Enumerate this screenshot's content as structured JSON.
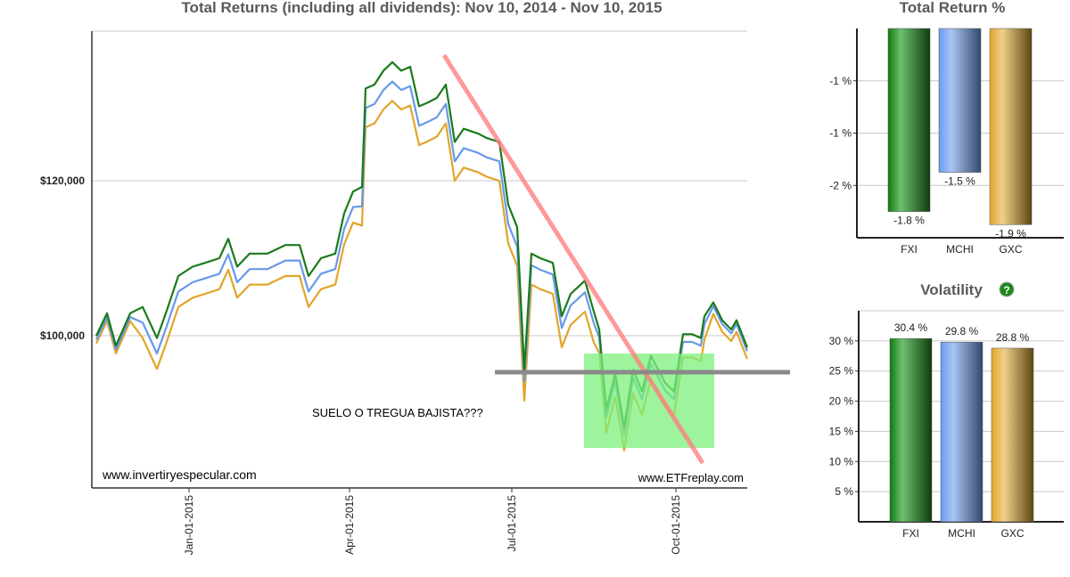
{
  "chart_data": [
    {
      "type": "line",
      "title": "Total Returns (including all dividends): Nov 10, 2014 - Nov 10, 2015",
      "xlabel": "",
      "ylabel": "",
      "x_unit": "days since Nov 10, 2014",
      "xlim": [
        0,
        365
      ],
      "ylim": [
        80350,
        139300
      ],
      "yticks": [
        {
          "value": 120000,
          "label": "$120,000"
        },
        {
          "value": 100000,
          "label": "$100,000"
        }
      ],
      "xticks": [
        {
          "value": 52,
          "label": "Jan-01-2015"
        },
        {
          "value": 142,
          "label": "Apr-01-2015"
        },
        {
          "value": 233,
          "label": "Jul-01-2015"
        },
        {
          "value": 325,
          "label": "Oct-01-2015"
        }
      ],
      "x": [
        0,
        6,
        11,
        19,
        26,
        34,
        39,
        46,
        54,
        61,
        69,
        74,
        79,
        86,
        96,
        106,
        114,
        119,
        126,
        134,
        139,
        144,
        149,
        151,
        156,
        161,
        166,
        171,
        176,
        181,
        186,
        191,
        196,
        201,
        206,
        214,
        219,
        226,
        231,
        236,
        240,
        244,
        249,
        256,
        261,
        266,
        274,
        279,
        282,
        286,
        291,
        296,
        301,
        306,
        311,
        319,
        324,
        329,
        334,
        339,
        341,
        346,
        351,
        356,
        359,
        365
      ],
      "series": [
        {
          "name": "GXC",
          "color": "#e0a52a",
          "values": [
            99000,
            101900,
            97700,
            101900,
            99700,
            95700,
            98900,
            103700,
            104900,
            105400,
            106000,
            108500,
            104900,
            106600,
            106600,
            107700,
            107700,
            103700,
            106000,
            106600,
            111800,
            114600,
            114200,
            126900,
            127400,
            129200,
            130300,
            129200,
            129700,
            124600,
            125100,
            125700,
            127400,
            120000,
            121700,
            121100,
            120500,
            120000,
            111900,
            109000,
            91600,
            106600,
            106000,
            105400,
            98500,
            101400,
            103100,
            99100,
            97800,
            87500,
            92100,
            85200,
            92600,
            89800,
            94400,
            90900,
            89800,
            97200,
            97200,
            96700,
            99500,
            102800,
            100500,
            99300,
            100500,
            97000
          ]
        },
        {
          "name": "MCHI",
          "color": "#6699e8",
          "values": [
            99500,
            102400,
            98200,
            102400,
            101700,
            97700,
            100900,
            105700,
            106900,
            107400,
            108000,
            110500,
            106900,
            108600,
            108600,
            109700,
            109700,
            105700,
            108000,
            108600,
            113800,
            116600,
            116700,
            129400,
            129900,
            131700,
            132800,
            131700,
            132200,
            127100,
            127600,
            128200,
            129900,
            122500,
            124200,
            123600,
            123000,
            122500,
            114400,
            111500,
            94100,
            109100,
            108500,
            107900,
            101000,
            103900,
            105600,
            101600,
            99800,
            89500,
            94100,
            87200,
            94600,
            91800,
            96400,
            92900,
            91800,
            99200,
            99200,
            98700,
            101500,
            103800,
            101500,
            100300,
            101500,
            98000
          ]
        },
        {
          "name": "FXI",
          "color": "#1a7a1a",
          "values": [
            100000,
            102900,
            98700,
            102900,
            103700,
            99700,
            102900,
            107700,
            108900,
            109400,
            110000,
            112500,
            108900,
            110600,
            110600,
            111700,
            111700,
            107700,
            110000,
            110600,
            115800,
            118600,
            119200,
            131900,
            132400,
            134200,
            135300,
            134200,
            134700,
            129600,
            130100,
            130700,
            132400,
            125000,
            126700,
            126100,
            125500,
            125000,
            116900,
            114000,
            95600,
            110600,
            110000,
            109400,
            102500,
            105400,
            107100,
            103100,
            100800,
            90500,
            95100,
            88200,
            95600,
            92800,
            97400,
            93900,
            92800,
            100200,
            100200,
            99700,
            102500,
            104300,
            102000,
            100800,
            102000,
            98500
          ]
        }
      ],
      "annotations": {
        "text": "SUELO O TREGUA BAJISTA???",
        "watermark_left": "www.invertiryespecular.com",
        "watermark_right": "www.ETFreplay.com"
      }
    },
    {
      "type": "bar",
      "title": "Total Return %",
      "categories": [
        "FXI",
        "MCHI",
        "GXC"
      ],
      "values": [
        -1.8,
        -1.5,
        -1.9
      ],
      "labels": [
        "-1.8 %",
        "-1.5 %",
        "-1.9 %"
      ],
      "ylim": [
        -2.0,
        -0.4
      ],
      "yticks": [
        {
          "value": -0.8,
          "label": "-1 %"
        },
        {
          "value": -1.2,
          "label": "-1 %"
        },
        {
          "value": -1.6,
          "label": "-2 %"
        }
      ]
    },
    {
      "type": "bar",
      "title": "Volatility",
      "help_icon": "?",
      "categories": [
        "FXI",
        "MCHI",
        "GXC"
      ],
      "values": [
        30.4,
        29.8,
        28.8
      ],
      "labels": [
        "30.4 %",
        "29.8 %",
        "28.8 %"
      ],
      "ylim": [
        0,
        35
      ],
      "yticks": [
        {
          "value": 5,
          "label": "5 %"
        },
        {
          "value": 10,
          "label": "10 %"
        },
        {
          "value": 15,
          "label": "15 %"
        },
        {
          "value": 20,
          "label": "20 %"
        },
        {
          "value": 25,
          "label": "25 %"
        },
        {
          "value": 30,
          "label": "30 %"
        }
      ]
    }
  ],
  "colors": {
    "FXI": [
      "#0f7a0f",
      "#6fbf6f",
      "#0c3d0c"
    ],
    "MCHI": [
      "#6a9cf0",
      "#a9c4f2",
      "#34486e"
    ],
    "GXC": [
      "#e0a52a",
      "#efd08a",
      "#5e4512"
    ]
  }
}
